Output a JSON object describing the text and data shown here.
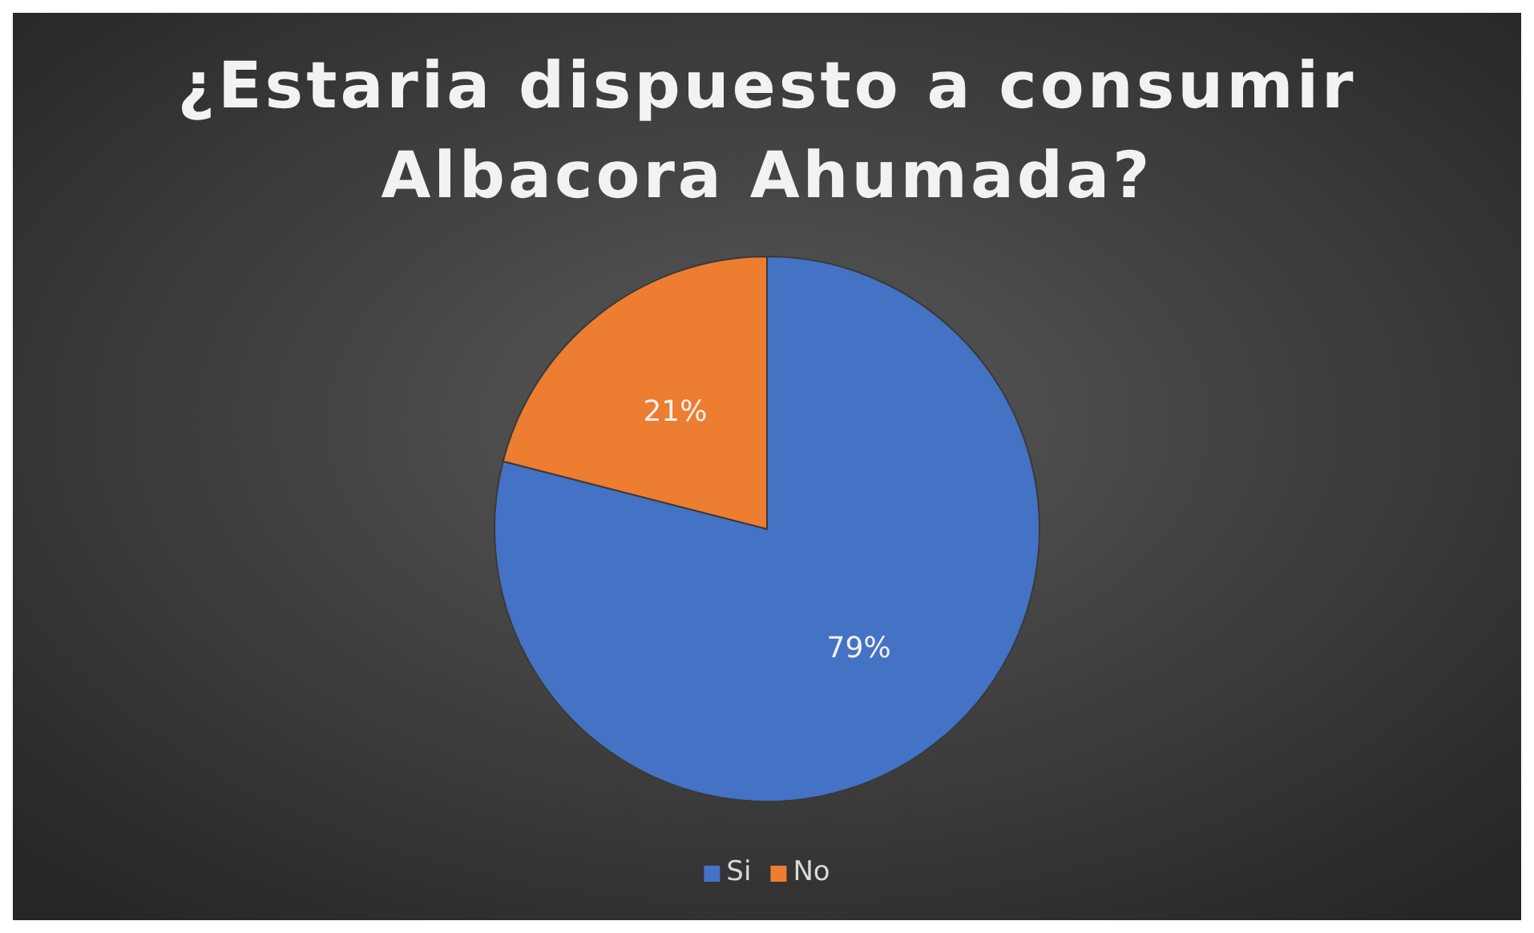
{
  "chart_data": {
    "type": "pie",
    "title": "¿Estaria dispuesto a consumir Albacora Ahumada?",
    "categories": [
      "Si",
      "No"
    ],
    "values": [
      79,
      21
    ],
    "colors": [
      "#4472c4",
      "#ed7d31"
    ],
    "value_labels": [
      "79%",
      "21%"
    ],
    "legend": "bottom"
  }
}
